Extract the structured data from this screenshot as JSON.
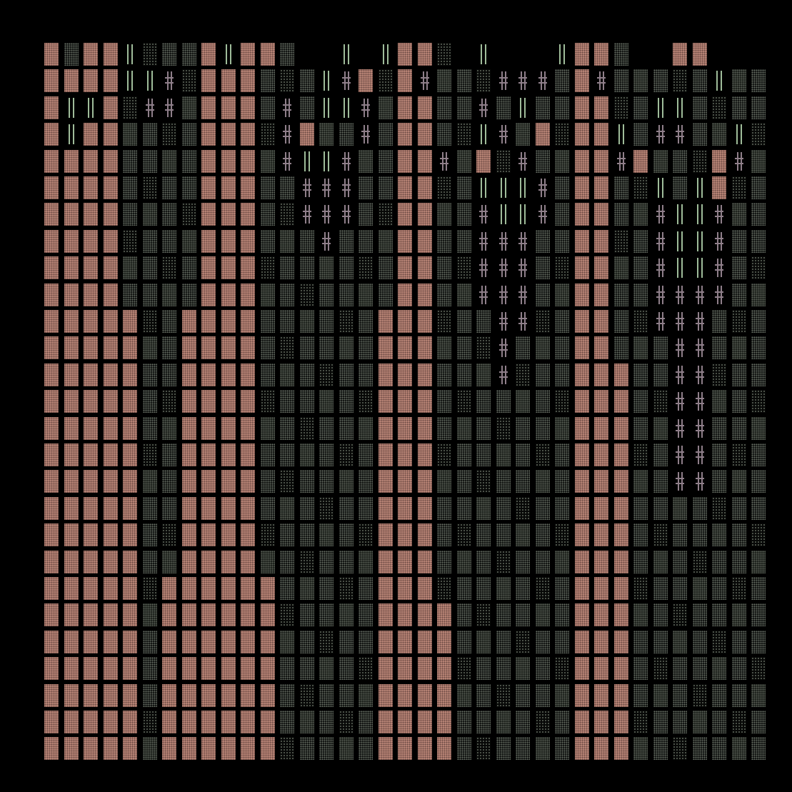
{
  "art": {
    "grid": {
      "cols": 37,
      "rows": 27
    },
    "palette": {
      "background": "#000000",
      "rose": "#b98577",
      "sage": "#9fbc9a",
      "mauve": "#8f7f8a"
    }
  }
}
